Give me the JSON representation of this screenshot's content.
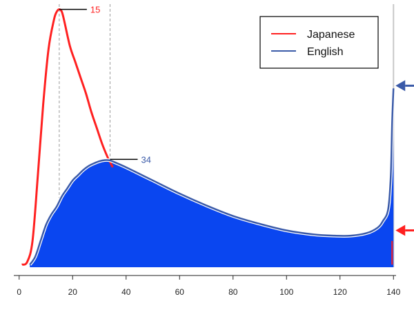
{
  "chart_data": {
    "type": "area",
    "x_ticks": [
      0,
      20,
      40,
      60,
      80,
      100,
      120,
      140
    ],
    "xlim": [
      -2,
      142
    ],
    "ylim": [
      0,
      100
    ],
    "grid": false,
    "legend_position": "top-right",
    "series": [
      {
        "name": "Japanese",
        "color": "#ff2020",
        "style": "line",
        "points": [
          [
            1,
            1
          ],
          [
            3,
            2
          ],
          [
            5,
            10
          ],
          [
            7,
            35
          ],
          [
            9,
            62
          ],
          [
            11,
            83
          ],
          [
            13,
            94
          ],
          [
            14,
            97
          ],
          [
            15,
            98
          ],
          [
            16,
            97
          ],
          [
            17,
            93
          ],
          [
            19,
            84
          ],
          [
            21,
            78
          ],
          [
            23,
            72
          ],
          [
            25,
            66
          ],
          [
            27,
            59
          ],
          [
            29,
            53
          ],
          [
            31,
            47
          ],
          [
            33,
            42
          ],
          [
            34,
            40
          ],
          [
            35,
            38
          ]
        ],
        "end_marker_value": 14
      },
      {
        "name": "English",
        "color": "#0a46f0",
        "line_color": "#3a5aa8",
        "style": "filled-area",
        "points": [
          [
            4,
            1
          ],
          [
            6,
            4
          ],
          [
            8,
            10
          ],
          [
            10,
            16
          ],
          [
            12,
            20
          ],
          [
            14,
            23
          ],
          [
            16,
            27
          ],
          [
            18,
            30
          ],
          [
            20,
            33
          ],
          [
            22,
            35
          ],
          [
            24,
            37
          ],
          [
            26,
            38.5
          ],
          [
            28,
            39.5
          ],
          [
            30,
            40.3
          ],
          [
            32,
            40.7
          ],
          [
            34,
            40.6
          ],
          [
            36,
            39.8
          ],
          [
            40,
            38
          ],
          [
            45,
            35.5
          ],
          [
            50,
            33
          ],
          [
            60,
            28
          ],
          [
            70,
            23.5
          ],
          [
            80,
            19.5
          ],
          [
            90,
            16.5
          ],
          [
            100,
            14
          ],
          [
            110,
            12.5
          ],
          [
            118,
            12
          ],
          [
            124,
            12
          ],
          [
            130,
            13
          ],
          [
            134,
            15
          ],
          [
            136,
            17.5
          ],
          [
            138,
            22
          ],
          [
            139,
            35
          ],
          [
            139.5,
            55
          ],
          [
            140,
            68
          ]
        ],
        "end_marker_value": 69
      }
    ],
    "annotations": [
      {
        "text": "15",
        "x": 15,
        "y": 98,
        "series": "Japanese",
        "guide_line": "dashed-vertical"
      },
      {
        "text": "34",
        "x": 34,
        "y": 41,
        "series": "English",
        "guide_line": "dashed-vertical"
      }
    ],
    "right_reference_line_x": 140
  }
}
